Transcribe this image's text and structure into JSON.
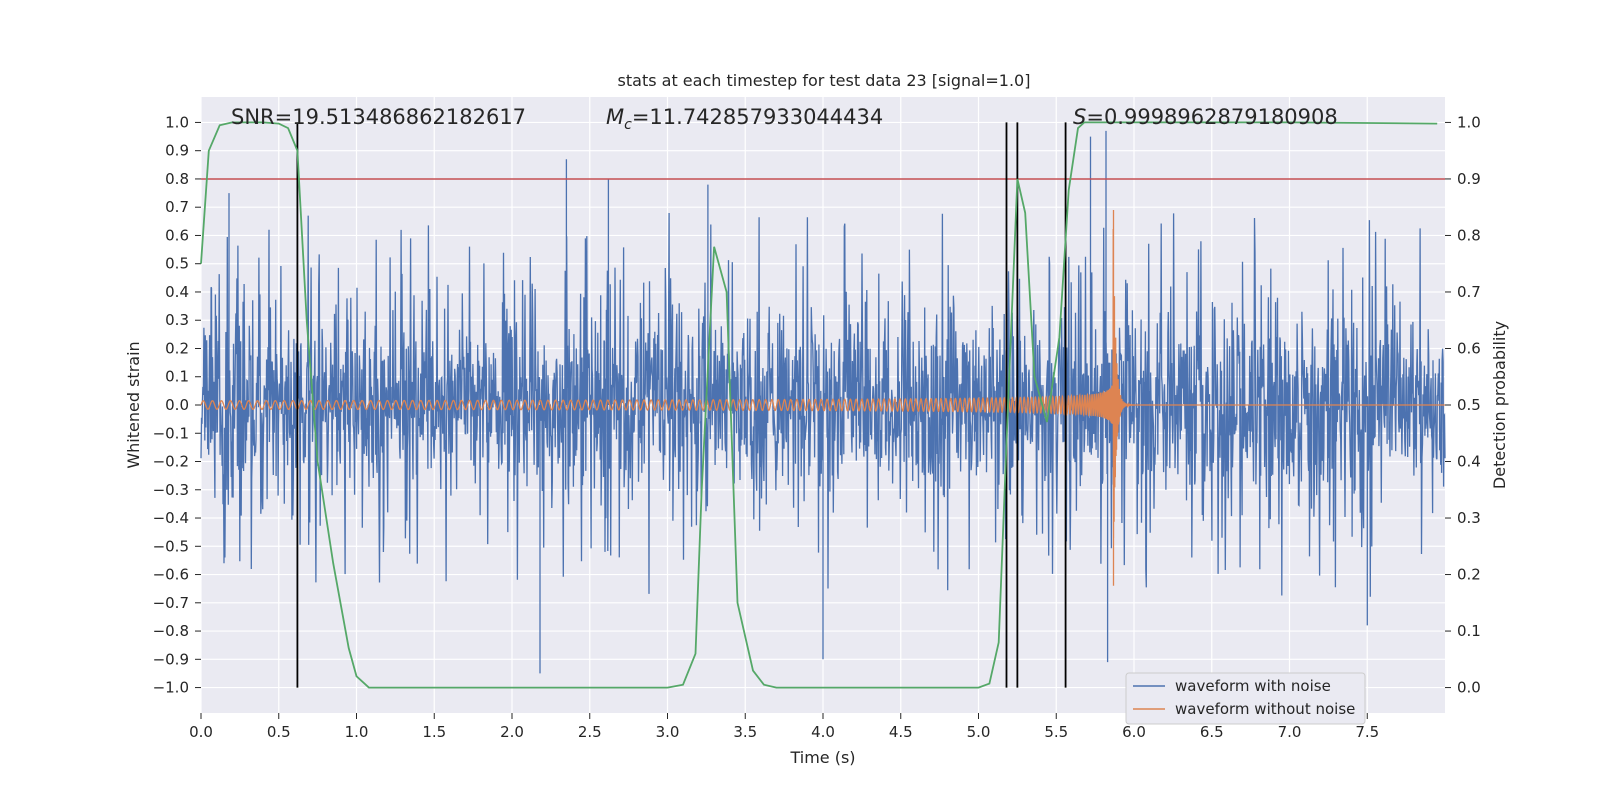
{
  "chart_data": {
    "type": "line",
    "title": "stats at each timestep for test data 23 [signal=1.0]",
    "xlabel": "Time (s)",
    "ylabel": "Whitened strain",
    "y2label": "Detection probability",
    "xlim": [
      0.0,
      8.0
    ],
    "ylim": [
      -1.09,
      1.09
    ],
    "y2lim": [
      -0.045,
      1.045
    ],
    "xticks": [
      "0.0",
      "0.5",
      "1.0",
      "1.5",
      "2.0",
      "2.5",
      "3.0",
      "3.5",
      "4.0",
      "4.5",
      "5.0",
      "5.5",
      "6.0",
      "6.5",
      "7.0",
      "7.5"
    ],
    "yticks": [
      "1.0",
      "0.9",
      "0.8",
      "0.7",
      "0.6",
      "0.5",
      "0.4",
      "0.3",
      "0.2",
      "0.1",
      "0.0",
      "−0.1",
      "−0.2",
      "−0.3",
      "−0.4",
      "−0.5",
      "−0.6",
      "−0.7",
      "−0.8",
      "−0.9",
      "−1.0"
    ],
    "y2ticks": [
      "1.0",
      "0.9",
      "0.8",
      "0.7",
      "0.6",
      "0.5",
      "0.4",
      "0.3",
      "0.2",
      "0.1",
      "0.0"
    ],
    "annotations": {
      "snr": "SNR=19.513486862182617",
      "mc_symbol": "M",
      "mc_sub": "c",
      "mc_value": "=11.742857933044434",
      "s_symbol": "S",
      "s_value": "=0.9998962879180908"
    },
    "threshold": {
      "y2": 0.9,
      "color": "#c44e52"
    },
    "event_lines_x": [
      0.62,
      5.18,
      5.25,
      5.56
    ],
    "series": [
      {
        "name": "waveform with noise",
        "color": "#4c72b0",
        "kind": "noise",
        "x_range": [
          0.0,
          8.0
        ],
        "core_amplitude": 0.4,
        "peak_range": [
          -0.95,
          0.87
        ],
        "approx_peaks": [
          [
            0.18,
            0.75
          ],
          [
            2.35,
            0.87
          ],
          [
            2.62,
            0.8
          ],
          [
            3.26,
            0.78
          ],
          [
            5.72,
            0.95
          ],
          [
            5.82,
            0.97
          ],
          [
            2.18,
            -0.95
          ],
          [
            4.0,
            -0.9
          ],
          [
            5.83,
            -0.91
          ],
          [
            7.5,
            -0.78
          ]
        ]
      },
      {
        "name": "waveform without noise",
        "color": "#dd8452",
        "kind": "chirp",
        "x_range": [
          0.0,
          5.87
        ],
        "start_amplitude": 0.015,
        "start_frequency_hz": 17,
        "merger_time": 5.87,
        "peak_max": 0.69,
        "peak_min": -0.64
      },
      {
        "name": "detection probability",
        "color": "#55a868",
        "axis": "right",
        "x": [
          0.0,
          0.05,
          0.12,
          0.2,
          0.3,
          0.4,
          0.5,
          0.56,
          0.62,
          0.68,
          0.75,
          0.85,
          0.95,
          1.0,
          1.08,
          2.0,
          3.0,
          3.1,
          3.18,
          3.22,
          3.3,
          3.38,
          3.45,
          3.55,
          3.62,
          3.7,
          4.5,
          5.0,
          5.07,
          5.13,
          5.19,
          5.25,
          5.3,
          5.36,
          5.44,
          5.52,
          5.58,
          5.64,
          5.68,
          6.0,
          7.0,
          7.95
        ],
        "y": [
          0.75,
          0.95,
          0.995,
          1.0,
          1.0,
          1.0,
          0.998,
          0.99,
          0.95,
          0.65,
          0.4,
          0.22,
          0.07,
          0.02,
          0.0,
          0.0,
          0.0,
          0.005,
          0.06,
          0.35,
          0.78,
          0.7,
          0.15,
          0.03,
          0.005,
          0.0,
          0.0,
          0.0,
          0.007,
          0.08,
          0.5,
          0.9,
          0.84,
          0.55,
          0.47,
          0.62,
          0.88,
          0.99,
          1.0,
          1.0,
          1.0,
          0.998
        ]
      }
    ],
    "legend": {
      "position": "lower-right",
      "entries": [
        "waveform with noise",
        "waveform without noise"
      ]
    }
  }
}
